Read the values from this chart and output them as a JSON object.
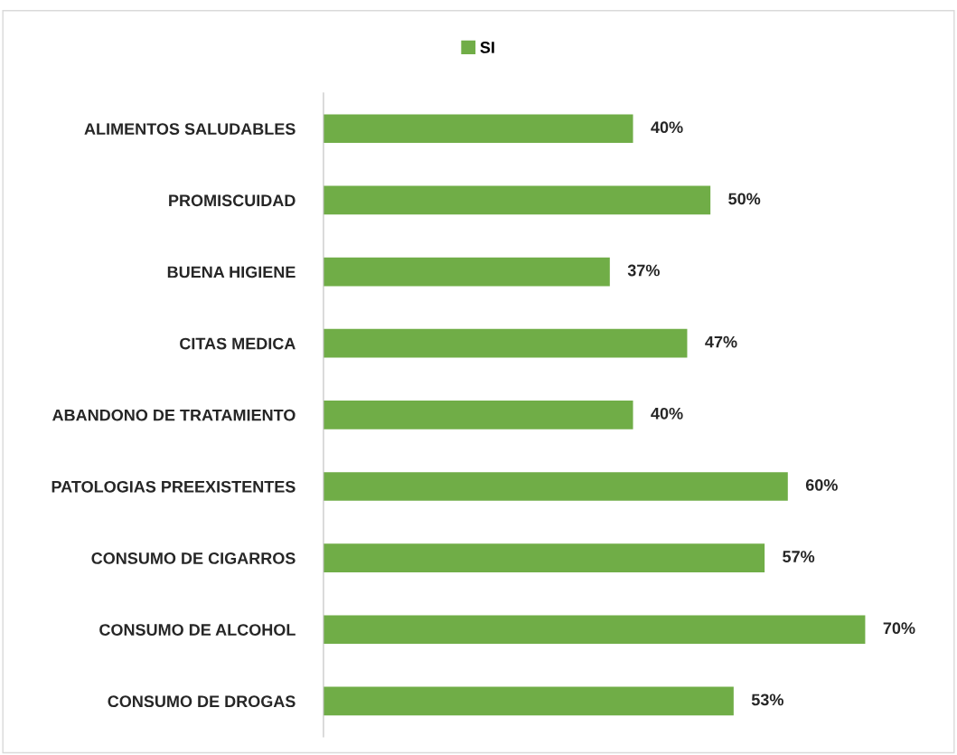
{
  "chart_data": {
    "type": "bar",
    "orientation": "horizontal",
    "categories": [
      "ALIMENTOS SALUDABLES",
      "PROMISCUIDAD",
      "BUENA HIGIENE",
      "CITAS MEDICA",
      "ABANDONO DE TRATAMIENTO",
      "PATOLOGIAS PREEXISTENTES",
      "CONSUMO DE CIGARROS",
      "CONSUMO DE ALCOHOL",
      "CONSUMO DE DROGAS"
    ],
    "series": [
      {
        "name": "SI",
        "color": "#70ad47",
        "values": [
          40,
          50,
          37,
          47,
          40,
          60,
          57,
          70,
          53
        ],
        "value_labels": [
          "40%",
          "50%",
          "37%",
          "47%",
          "40%",
          "60%",
          "57%",
          "70%",
          "53%"
        ]
      }
    ],
    "legend": "top",
    "grid": false
  }
}
